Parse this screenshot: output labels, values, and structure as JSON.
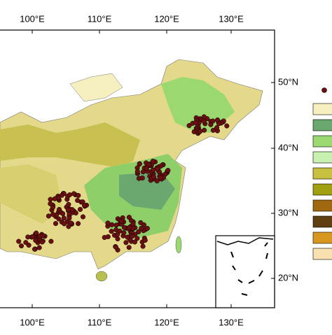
{
  "map": {
    "lon_labels_top": [
      "100°E",
      "110°E",
      "120°E",
      "130°E"
    ],
    "lon_labels_bottom": [
      "100°E",
      "110°E",
      "120°E",
      "130°E"
    ],
    "lat_labels": [
      "50°N",
      "40°N",
      "30°N",
      "20°N"
    ]
  }
}
